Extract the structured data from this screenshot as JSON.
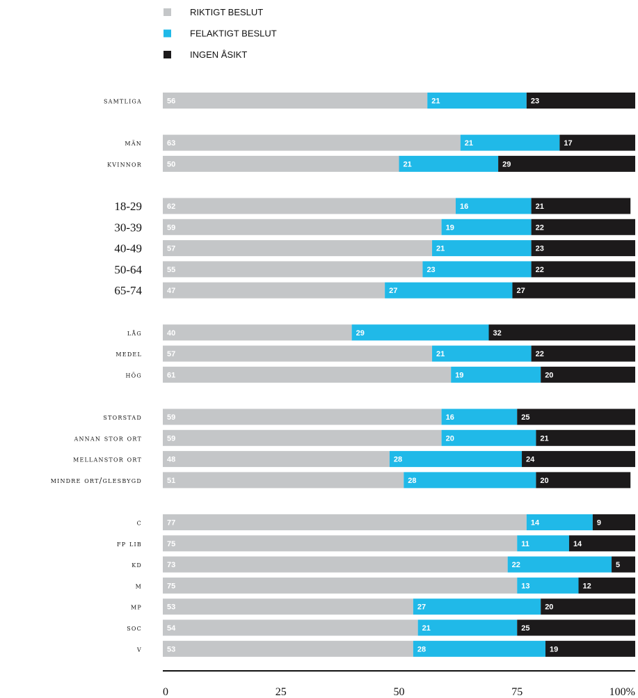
{
  "colors": {
    "riktigt": "#c4c6c8",
    "felaktigt": "#20b9e8",
    "ingen": "#1c1a1b",
    "axis": "#111111"
  },
  "legend": [
    {
      "label": "RIKTIGT BESLUT",
      "color": "#c4c6c8"
    },
    {
      "label": "FELAKTIGT BESLUT",
      "color": "#20b9e8"
    },
    {
      "label": "INGEN ÅSIKT",
      "color": "#1c1a1b"
    }
  ],
  "chart_data": {
    "type": "bar",
    "orientation": "horizontal",
    "stacked": true,
    "title": "",
    "xlabel": "",
    "ylabel": "",
    "xlim": [
      0,
      100
    ],
    "x_ticks": [
      "0",
      "25",
      "50",
      "75",
      "100%"
    ],
    "legend_position": "top-left",
    "grid": false,
    "groups": [
      [
        "samtliga"
      ],
      [
        "män",
        "kvinnor"
      ],
      [
        "18-29",
        "30-39",
        "40-49",
        "50-64",
        "65-74"
      ],
      [
        "låg",
        "medel",
        "hög"
      ],
      [
        "storstad",
        "annan stor ort",
        "mellanstor ort",
        "mindre ort/glesbygd"
      ],
      [
        "c",
        "fp lib",
        "kd",
        "m",
        "mp",
        "soc",
        "v"
      ]
    ],
    "categories": [
      "samtliga",
      "män",
      "kvinnor",
      "18-29",
      "30-39",
      "40-49",
      "50-64",
      "65-74",
      "låg",
      "medel",
      "hög",
      "storstad",
      "annan stor ort",
      "mellanstor ort",
      "mindre ort/glesbygd",
      "c",
      "fp lib",
      "kd",
      "m",
      "mp",
      "soc",
      "v"
    ],
    "series": [
      {
        "name": "RIKTIGT BESLUT",
        "values": [
          56,
          63,
          50,
          62,
          59,
          57,
          55,
          47,
          40,
          57,
          61,
          59,
          59,
          48,
          51,
          77,
          75,
          73,
          75,
          53,
          54,
          53
        ]
      },
      {
        "name": "FELAKTIGT BESLUT",
        "values": [
          21,
          21,
          21,
          16,
          19,
          21,
          23,
          27,
          29,
          21,
          19,
          16,
          20,
          28,
          28,
          14,
          11,
          22,
          13,
          27,
          21,
          28
        ]
      },
      {
        "name": "INGEN ÅSIKT",
        "values": [
          23,
          17,
          29,
          21,
          22,
          23,
          22,
          27,
          32,
          22,
          20,
          25,
          21,
          24,
          20,
          9,
          14,
          5,
          12,
          20,
          25,
          19
        ]
      }
    ]
  }
}
